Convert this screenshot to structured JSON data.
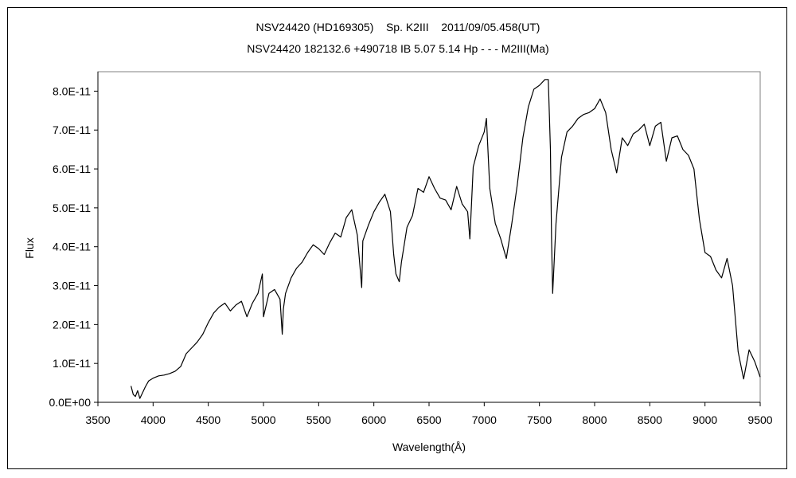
{
  "chart_data": {
    "type": "line",
    "title": "NSV24420 (HD169305)    Sp. K2III    2011/09/05.458(UT)",
    "subtitle": "NSV24420 182132.6 +490718 IB 5.07 5.14 Hp - - - M2III(Ma)",
    "xlabel": "Wavelength(Å)",
    "ylabel": "Flux",
    "xlim": [
      3500,
      9500
    ],
    "ylim": [
      0,
      8.5e-11
    ],
    "x_ticks": [
      3500,
      4000,
      4500,
      5000,
      5500,
      6000,
      6500,
      7000,
      7500,
      8000,
      8500,
      9000,
      9500
    ],
    "y_ticks": [
      0,
      1e-11,
      2e-11,
      3e-11,
      4e-11,
      5e-11,
      6e-11,
      7e-11,
      8e-11
    ],
    "y_tick_labels": [
      "0.0E+00",
      "1.0E-11",
      "2.0E-11",
      "3.0E-11",
      "4.0E-11",
      "5.0E-11",
      "6.0E-11",
      "7.0E-11",
      "8.0E-11"
    ],
    "grid": false,
    "legend": "none",
    "line_color": "#000000",
    "series": [
      {
        "x": [
          3800,
          3820,
          3840,
          3860,
          3880,
          3900,
          3930,
          3960,
          4000,
          4050,
          4100,
          4150,
          4200,
          4250,
          4300,
          4350,
          4400,
          4450,
          4500,
          4550,
          4600,
          4650,
          4700,
          4750,
          4800,
          4850,
          4900,
          4950,
          4990,
          5000,
          5050,
          5100,
          5150,
          5170,
          5180,
          5200,
          5250,
          5300,
          5350,
          5400,
          5450,
          5500,
          5550,
          5600,
          5650,
          5700,
          5750,
          5800,
          5850,
          5880,
          5890,
          5900,
          5950,
          6000,
          6050,
          6100,
          6150,
          6180,
          6200,
          6230,
          6250,
          6300,
          6350,
          6400,
          6450,
          6500,
          6550,
          6600,
          6650,
          6700,
          6750,
          6800,
          6850,
          6870,
          6900,
          6950,
          7000,
          7020,
          7050,
          7100,
          7150,
          7200,
          7250,
          7300,
          7350,
          7400,
          7450,
          7500,
          7550,
          7580,
          7600,
          7610,
          7620,
          7650,
          7700,
          7750,
          7800,
          7850,
          7900,
          7950,
          8000,
          8050,
          8100,
          8150,
          8200,
          8250,
          8300,
          8350,
          8400,
          8450,
          8500,
          8550,
          8600,
          8650,
          8700,
          8750,
          8800,
          8850,
          8900,
          8950,
          9000,
          9050,
          9100,
          9150,
          9200,
          9250,
          9300,
          9350,
          9400,
          9450,
          9500
        ],
        "y": [
          4.2e-12,
          2e-12,
          1.5e-12,
          3e-12,
          1e-12,
          2.2e-12,
          4e-12,
          5.5e-12,
          6.2e-12,
          6.8e-12,
          7e-12,
          7.4e-12,
          8e-12,
          9.2e-12,
          1.25e-11,
          1.4e-11,
          1.55e-11,
          1.75e-11,
          2.05e-11,
          2.3e-11,
          2.45e-11,
          2.55e-11,
          2.35e-11,
          2.5e-11,
          2.6e-11,
          2.2e-11,
          2.55e-11,
          2.8e-11,
          3.3e-11,
          2.2e-11,
          2.8e-11,
          2.9e-11,
          2.65e-11,
          1.75e-11,
          2.4e-11,
          2.8e-11,
          3.2e-11,
          3.45e-11,
          3.6e-11,
          3.85e-11,
          4.05e-11,
          3.95e-11,
          3.8e-11,
          4.1e-11,
          4.35e-11,
          4.25e-11,
          4.75e-11,
          4.95e-11,
          4.3e-11,
          3.3e-11,
          2.95e-11,
          4.15e-11,
          4.55e-11,
          4.9e-11,
          5.15e-11,
          5.35e-11,
          4.9e-11,
          3.8e-11,
          3.3e-11,
          3.1e-11,
          3.6e-11,
          4.5e-11,
          4.8e-11,
          5.5e-11,
          5.4e-11,
          5.8e-11,
          5.5e-11,
          5.25e-11,
          5.2e-11,
          4.95e-11,
          5.55e-11,
          5.1e-11,
          4.9e-11,
          4.2e-11,
          6.05e-11,
          6.6e-11,
          6.95e-11,
          7.3e-11,
          5.5e-11,
          4.6e-11,
          4.2e-11,
          3.7e-11,
          4.6e-11,
          5.6e-11,
          6.8e-11,
          7.6e-11,
          8.05e-11,
          8.15e-11,
          8.3e-11,
          8.3e-11,
          6.5e-11,
          4.2e-11,
          2.8e-11,
          4.6e-11,
          6.3e-11,
          6.95e-11,
          7.1e-11,
          7.3e-11,
          7.4e-11,
          7.45e-11,
          7.55e-11,
          7.8e-11,
          7.45e-11,
          6.5e-11,
          5.9e-11,
          6.8e-11,
          6.6e-11,
          6.9e-11,
          7e-11,
          7.15e-11,
          6.6e-11,
          7.1e-11,
          7.2e-11,
          6.2e-11,
          6.8e-11,
          6.85e-11,
          6.5e-11,
          6.35e-11,
          6e-11,
          4.7e-11,
          3.85e-11,
          3.75e-11,
          3.4e-11,
          3.2e-11,
          3.7e-11,
          3e-11,
          1.3e-11,
          6e-12,
          1.35e-11,
          1.05e-11,
          6.5e-12
        ]
      }
    ]
  }
}
